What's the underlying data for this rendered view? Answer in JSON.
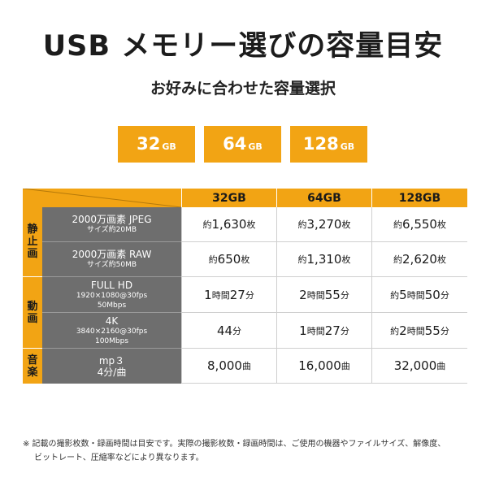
{
  "title": "USB メモリー選びの容量目安",
  "subtitle": "お好みに合わせた容量選択",
  "chips": [
    {
      "num": "32",
      "unit": "GB"
    },
    {
      "num": "64",
      "unit": "GB"
    },
    {
      "num": "128",
      "unit": "GB"
    }
  ],
  "table": {
    "headers": [
      "32GB",
      "64GB",
      "128GB"
    ],
    "categories": [
      "静止画",
      "動画",
      "音楽"
    ],
    "rows": [
      {
        "main": "2000万画素 JPEG",
        "sub1": "サイズ約20MB",
        "sub2": "",
        "v": [
          [
            "約",
            "1,630",
            "枚"
          ],
          [
            "約",
            "3,270",
            "枚"
          ],
          [
            "約",
            "6,550",
            "枚"
          ]
        ]
      },
      {
        "main": "2000万画素 RAW",
        "sub1": "サイズ約50MB",
        "sub2": "",
        "v": [
          [
            "約",
            "650",
            "枚"
          ],
          [
            "約",
            "1,310",
            "枚"
          ],
          [
            "約",
            "2,620",
            "枚"
          ]
        ]
      },
      {
        "main": "FULL HD",
        "sub1": "1920×1080@30fps",
        "sub2": "50Mbps",
        "v": [
          [
            "",
            "1",
            "時間"
          ],
          [
            "",
            "2",
            "時間"
          ],
          [
            "約",
            "5",
            "時間"
          ]
        ],
        "v2": [
          [
            "27",
            "分"
          ],
          [
            "55",
            "分"
          ],
          [
            "50",
            "分"
          ]
        ]
      },
      {
        "main": "4K",
        "sub1": "3840×2160@30fps",
        "sub2": "100Mbps",
        "v": [
          [
            "",
            "44",
            "分"
          ],
          [
            "",
            "1",
            "時間"
          ],
          [
            "約",
            "2",
            "時間"
          ]
        ],
        "v2": [
          [
            "",
            ""
          ],
          [
            "27",
            "分"
          ],
          [
            "55",
            "分"
          ]
        ]
      },
      {
        "main": "mp３",
        "sub1": "4分/曲",
        "sub2": "",
        "v": [
          [
            "",
            "8,000",
            "曲"
          ],
          [
            "",
            "16,000",
            "曲"
          ],
          [
            "",
            "32,000",
            "曲"
          ]
        ]
      }
    ]
  },
  "note": {
    "line1": "※ 記載の撮影枚数・録画時間は目安です。実際の撮影枚数・録画時間は、ご使用の機器やファイルサイズ、解像度、",
    "line2": "ビットレート、圧縮率などにより異なります。"
  }
}
